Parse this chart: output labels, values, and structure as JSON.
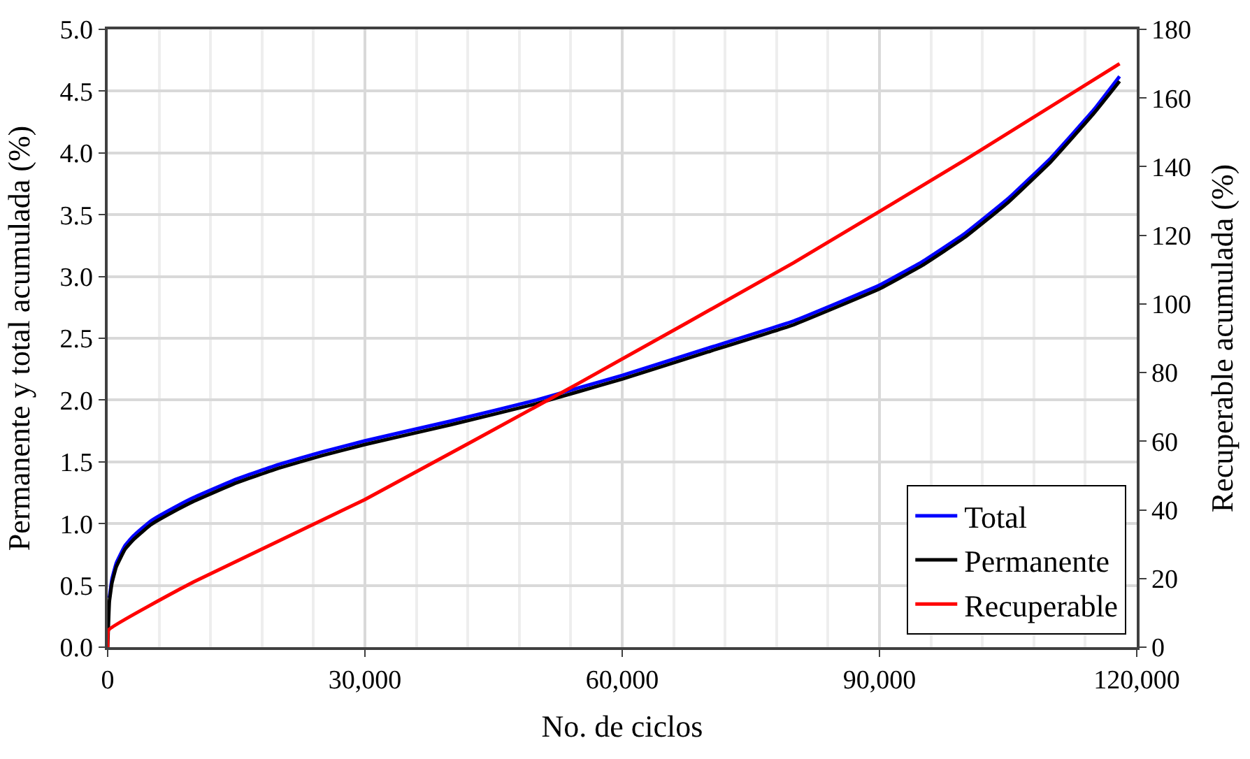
{
  "chart_data": {
    "type": "line",
    "xlabel": "No. de ciclos",
    "ylabel": "Permanente y total acumulada (%)",
    "y2label": "Recuperable acumulada (%)",
    "xlim": [
      0,
      120000
    ],
    "xticks": [
      {
        "value": 0,
        "label": "0"
      },
      {
        "value": 30000,
        "label": "30,000"
      },
      {
        "value": 60000,
        "label": "60,000"
      },
      {
        "value": 90000,
        "label": "90,000"
      },
      {
        "value": 120000,
        "label": "120,000"
      }
    ],
    "ylim": [
      0,
      5
    ],
    "yticks": [
      {
        "value": 0,
        "label": "0.0"
      },
      {
        "value": 0.5,
        "label": "0.5"
      },
      {
        "value": 1,
        "label": "1.0"
      },
      {
        "value": 1.5,
        "label": "1.5"
      },
      {
        "value": 2,
        "label": "2.0"
      },
      {
        "value": 2.5,
        "label": "2.5"
      },
      {
        "value": 3,
        "label": "3.0"
      },
      {
        "value": 3.5,
        "label": "3.5"
      },
      {
        "value": 4,
        "label": "4.0"
      },
      {
        "value": 4.5,
        "label": "4.5"
      },
      {
        "value": 5,
        "label": "5.0"
      }
    ],
    "y2lim": [
      0,
      180
    ],
    "y2ticks": [
      0,
      20,
      40,
      60,
      80,
      100,
      120,
      140,
      160,
      180
    ],
    "grid": true,
    "legend": "bottom right",
    "marker": "none",
    "line_style": "solid",
    "series": [
      {
        "name": "Total",
        "color": "#0000ff",
        "x": [
          200,
          500,
          1000,
          2000,
          3000,
          5000,
          7500,
          10000,
          15000,
          20000,
          25000,
          30000,
          40000,
          50000,
          55000,
          60000,
          70000,
          80000,
          90000,
          95000,
          100000,
          105000,
          110000,
          115000,
          118000
        ],
        "values": [
          0.4,
          0.55,
          0.68,
          0.82,
          0.9,
          1.02,
          1.12,
          1.21,
          1.36,
          1.48,
          1.58,
          1.67,
          1.83,
          2.0,
          2.1,
          2.2,
          2.42,
          2.64,
          2.93,
          3.12,
          3.35,
          3.63,
          3.96,
          4.35,
          4.62
        ]
      },
      {
        "name": "Permanente",
        "color": "#000000",
        "x": [
          0,
          200,
          500,
          1000,
          2000,
          3000,
          5000,
          7500,
          10000,
          15000,
          20000,
          25000,
          30000,
          40000,
          50000,
          55000,
          60000,
          70000,
          80000,
          90000,
          95000,
          100000,
          105000,
          110000,
          115000,
          118000
        ],
        "values": [
          0.0,
          0.37,
          0.52,
          0.65,
          0.79,
          0.87,
          0.99,
          1.09,
          1.18,
          1.33,
          1.45,
          1.55,
          1.64,
          1.8,
          1.97,
          2.07,
          2.17,
          2.39,
          2.61,
          2.9,
          3.09,
          3.32,
          3.6,
          3.93,
          4.32,
          4.58
        ]
      },
      {
        "name": "Recuperable",
        "color": "#ff0000",
        "axis": "y2",
        "x": [
          0,
          100,
          10000,
          30000,
          55000,
          80000,
          100000,
          118000
        ],
        "values": [
          0,
          5,
          19,
          43,
          77,
          112,
          142,
          170
        ]
      }
    ]
  }
}
